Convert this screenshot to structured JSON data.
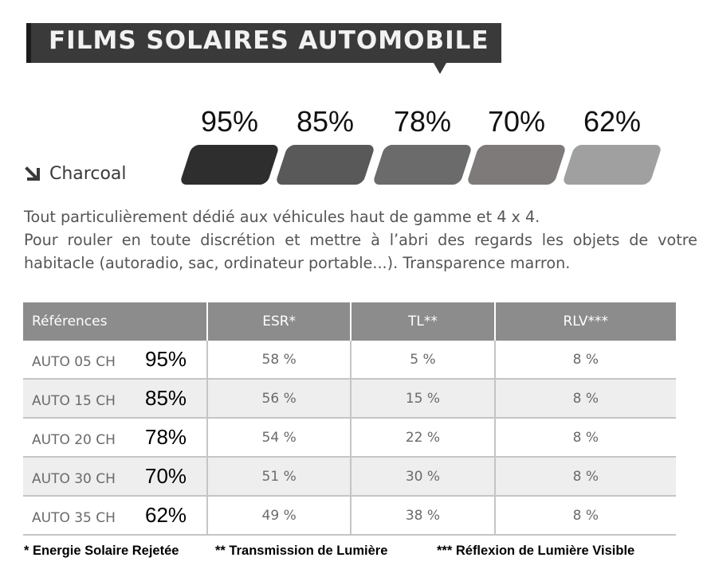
{
  "header": {
    "title": "FILMS SOLAIRES AUTOMOBILE"
  },
  "shades": [
    {
      "pct": "95%",
      "color": "#2e2e2e"
    },
    {
      "pct": "85%",
      "color": "#595959"
    },
    {
      "pct": "78%",
      "color": "#6b6b6b"
    },
    {
      "pct": "70%",
      "color": "#7d7a79"
    },
    {
      "pct": "62%",
      "color": "#a0a0a0"
    }
  ],
  "film": {
    "name": "Charcoal",
    "icon": "arrow-down-right-icon"
  },
  "description": {
    "line1": "Tout particulièrement dédié aux véhicules haut de gamme et 4 x 4.",
    "line2": "Pour rouler en toute discrétion et mettre à l’abri des regards les objets de votre habitacle (autoradio, sac, ordinateur portable...). Transparence marron."
  },
  "table": {
    "headers": [
      "Références",
      "ESR*",
      "TL**",
      "RLV***"
    ],
    "rows": [
      {
        "ref": "AUTO 05 CH",
        "pct": "95%",
        "esr": "58 %",
        "tl": "5 %",
        "rlv": "8 %"
      },
      {
        "ref": "AUTO 15 CH",
        "pct": "85%",
        "esr": "56 %",
        "tl": "15 %",
        "rlv": "8 %"
      },
      {
        "ref": "AUTO 20 CH",
        "pct": "78%",
        "esr": "54 %",
        "tl": "22 %",
        "rlv": "8 %"
      },
      {
        "ref": "AUTO 30 CH",
        "pct": "70%",
        "esr": "51 %",
        "tl": "30 %",
        "rlv": "8 %"
      },
      {
        "ref": "AUTO 35 CH",
        "pct": "62%",
        "esr": "49 %",
        "tl": "38 %",
        "rlv": "8 %"
      }
    ]
  },
  "footnotes": [
    "* Energie Solaire Rejetée",
    "** Transmission de Lumière",
    "*** Réflexion de Lumière Visible"
  ]
}
